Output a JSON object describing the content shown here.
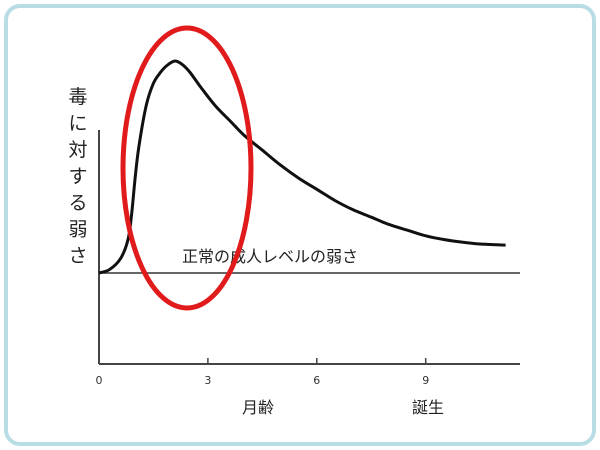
{
  "chart_data": {
    "type": "line",
    "ylabel": "毒に対する弱さ",
    "xlabel": "月齢",
    "x_ticks": [
      0,
      3,
      6,
      9
    ],
    "xlim": [
      0,
      11.5
    ],
    "ylim": [
      -2.4,
      6.1
    ],
    "birth_label": "誕生",
    "reference_line": {
      "label": "正常の成人レベルの弱さ",
      "y": 0
    },
    "series": [
      {
        "x": [
          0,
          0.3,
          0.6,
          0.8,
          0.9,
          1.0,
          1.1,
          1.3,
          1.5,
          1.7,
          1.9,
          2.1,
          2.3,
          2.5,
          2.8,
          3.2,
          3.6,
          4.0,
          4.5,
          5.0,
          5.5,
          6.0,
          6.5,
          7.0,
          7.5,
          8.0,
          8.5,
          9.0,
          9.5,
          10.0,
          10.5,
          11.2
        ],
        "y": [
          0,
          0.1,
          0.4,
          0.9,
          1.6,
          2.6,
          3.4,
          4.5,
          5.1,
          5.4,
          5.6,
          5.7,
          5.6,
          5.4,
          5.0,
          4.5,
          4.1,
          3.7,
          3.3,
          2.9,
          2.55,
          2.25,
          1.95,
          1.7,
          1.5,
          1.3,
          1.15,
          1.0,
          0.9,
          0.83,
          0.78,
          0.75
        ]
      }
    ],
    "highlight": {
      "type": "ellipse",
      "color": "#e11b1b"
    }
  },
  "colors": {
    "frame_border": "#b8dde4",
    "curve": "#111111",
    "axis": "#444444"
  }
}
